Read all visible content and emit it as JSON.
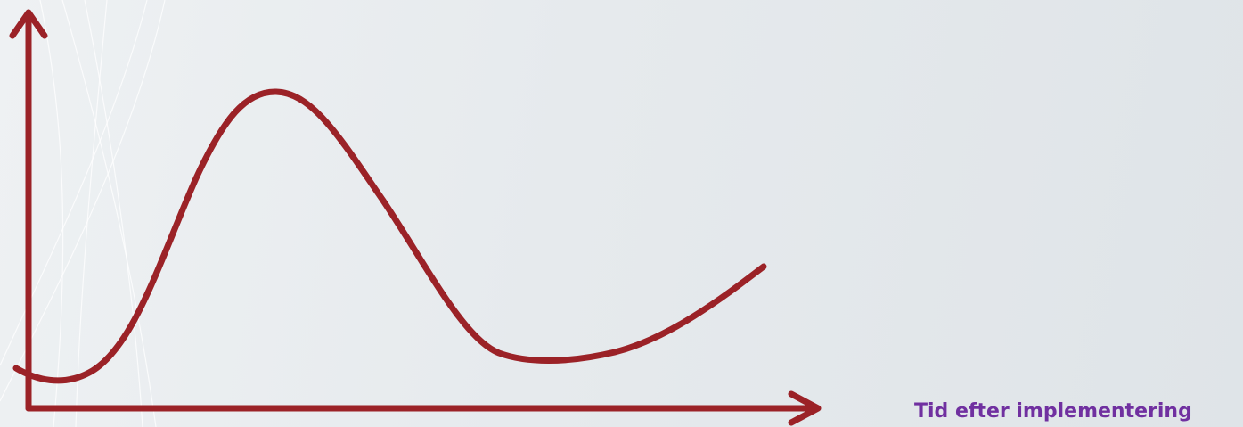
{
  "x_axis_label": "Tid efter implementering",
  "colors": {
    "curve": "#9b2227",
    "axis": "#9b2227",
    "label": "#7030a0",
    "background": "#e6eaed"
  },
  "diagram": {
    "axes": [
      "y-axis-arrow",
      "x-axis-arrow"
    ],
    "curve_shape": "rise-peak-fall-trough-rise"
  }
}
